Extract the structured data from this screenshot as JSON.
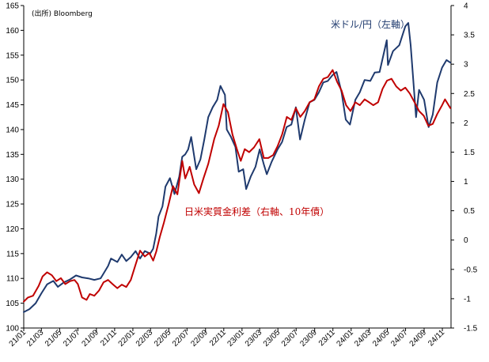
{
  "source_note": "(出所) Bloomberg",
  "chart_data": {
    "type": "line",
    "x_tick_labels": [
      "21/01",
      "21/03",
      "21/05",
      "21/07",
      "21/09",
      "21/11",
      "22/01",
      "22/03",
      "22/05",
      "22/07",
      "22/09",
      "22/11",
      "23/01",
      "23/03",
      "23/05",
      "23/07",
      "23/09",
      "23/11",
      "24/01",
      "24/03",
      "24/05",
      "24/07",
      "24/09",
      "24/11"
    ],
    "x_range": [
      "2021-01-01",
      "2024-11-30"
    ],
    "left_axis": {
      "min": 100,
      "max": 165,
      "ticks": [
        100,
        105,
        110,
        115,
        120,
        125,
        130,
        135,
        140,
        145,
        150,
        155,
        160,
        165
      ]
    },
    "right_axis": {
      "min": -1.5,
      "max": 4,
      "ticks": [
        -1.5,
        -1,
        -0.5,
        0,
        0.5,
        1,
        1.5,
        2,
        2.5,
        3,
        3.5,
        4
      ]
    },
    "grid": false,
    "series": [
      {
        "name": "米ドル/円（左軸）",
        "axis": "left",
        "color": "#1f3a6e",
        "points": [
          [
            "2021-01-01",
            103.2
          ],
          [
            "2021-01-20",
            103.8
          ],
          [
            "2021-02-10",
            105.0
          ],
          [
            "2021-03-01",
            107.0
          ],
          [
            "2021-03-20",
            108.8
          ],
          [
            "2021-04-10",
            109.5
          ],
          [
            "2021-04-25",
            108.3
          ],
          [
            "2021-05-15",
            109.2
          ],
          [
            "2021-06-05",
            109.8
          ],
          [
            "2021-06-25",
            110.6
          ],
          [
            "2021-07-15",
            110.2
          ],
          [
            "2021-08-05",
            110.0
          ],
          [
            "2021-08-25",
            109.7
          ],
          [
            "2021-09-15",
            110.0
          ],
          [
            "2021-09-25",
            111.0
          ],
          [
            "2021-10-10",
            112.5
          ],
          [
            "2021-10-20",
            114.0
          ],
          [
            "2021-11-10",
            113.3
          ],
          [
            "2021-11-25",
            114.8
          ],
          [
            "2021-12-10",
            113.5
          ],
          [
            "2021-12-25",
            114.3
          ],
          [
            "2022-01-10",
            115.5
          ],
          [
            "2022-01-25",
            114.0
          ],
          [
            "2022-02-10",
            115.5
          ],
          [
            "2022-02-28",
            115.0
          ],
          [
            "2022-03-10",
            116.0
          ],
          [
            "2022-03-20",
            119.0
          ],
          [
            "2022-03-28",
            122.5
          ],
          [
            "2022-04-10",
            124.5
          ],
          [
            "2022-04-20",
            128.5
          ],
          [
            "2022-05-05",
            130.2
          ],
          [
            "2022-05-20",
            127.0
          ],
          [
            "2022-06-05",
            130.5
          ],
          [
            "2022-06-15",
            134.5
          ],
          [
            "2022-06-25",
            135.0
          ],
          [
            "2022-07-05",
            136.0
          ],
          [
            "2022-07-15",
            138.5
          ],
          [
            "2022-08-01",
            132.0
          ],
          [
            "2022-08-15",
            134.0
          ],
          [
            "2022-08-28",
            138.0
          ],
          [
            "2022-09-10",
            142.5
          ],
          [
            "2022-09-25",
            144.5
          ],
          [
            "2022-10-10",
            146.0
          ],
          [
            "2022-10-21",
            148.8
          ],
          [
            "2022-11-05",
            147.0
          ],
          [
            "2022-11-11",
            140.0
          ],
          [
            "2022-11-25",
            138.5
          ],
          [
            "2022-12-10",
            136.5
          ],
          [
            "2022-12-21",
            131.5
          ],
          [
            "2023-01-05",
            132.0
          ],
          [
            "2023-01-15",
            128.0
          ],
          [
            "2023-01-30",
            130.5
          ],
          [
            "2023-02-15",
            132.5
          ],
          [
            "2023-03-01",
            136.0
          ],
          [
            "2023-03-15",
            133.0
          ],
          [
            "2023-03-25",
            131.0
          ],
          [
            "2023-04-10",
            133.5
          ],
          [
            "2023-04-30",
            136.0
          ],
          [
            "2023-05-15",
            137.5
          ],
          [
            "2023-05-30",
            140.5
          ],
          [
            "2023-06-15",
            141.0
          ],
          [
            "2023-06-30",
            144.5
          ],
          [
            "2023-07-14",
            138.0
          ],
          [
            "2023-07-30",
            142.0
          ],
          [
            "2023-08-15",
            145.5
          ],
          [
            "2023-08-31",
            146.0
          ],
          [
            "2023-09-15",
            147.5
          ],
          [
            "2023-09-30",
            149.5
          ],
          [
            "2023-10-15",
            149.8
          ],
          [
            "2023-10-31",
            151.0
          ],
          [
            "2023-11-13",
            151.6
          ],
          [
            "2023-11-30",
            147.5
          ],
          [
            "2023-12-14",
            142.0
          ],
          [
            "2023-12-28",
            141.0
          ],
          [
            "2024-01-15",
            146.0
          ],
          [
            "2024-01-30",
            147.5
          ],
          [
            "2024-02-15",
            150.0
          ],
          [
            "2024-03-05",
            149.8
          ],
          [
            "2024-03-20",
            151.5
          ],
          [
            "2024-04-05",
            151.6
          ],
          [
            "2024-04-29",
            158.0
          ],
          [
            "2024-05-03",
            153.0
          ],
          [
            "2024-05-20",
            155.8
          ],
          [
            "2024-06-10",
            157.0
          ],
          [
            "2024-06-30",
            160.8
          ],
          [
            "2024-07-10",
            161.5
          ],
          [
            "2024-07-18",
            157.0
          ],
          [
            "2024-08-05",
            142.5
          ],
          [
            "2024-08-15",
            148.0
          ],
          [
            "2024-09-01",
            146.0
          ],
          [
            "2024-09-16",
            140.5
          ],
          [
            "2024-09-30",
            143.0
          ],
          [
            "2024-10-15",
            149.5
          ],
          [
            "2024-10-31",
            152.5
          ],
          [
            "2024-11-15",
            154.0
          ],
          [
            "2024-11-28",
            153.5
          ]
        ]
      },
      {
        "name": "日米実質金利差（右軸、10年債）",
        "axis": "right",
        "color": "#c00000",
        "points": [
          [
            "2021-01-01",
            -1.05
          ],
          [
            "2021-01-15",
            -0.98
          ],
          [
            "2021-02-01",
            -0.95
          ],
          [
            "2021-02-20",
            -0.78
          ],
          [
            "2021-03-05",
            -0.62
          ],
          [
            "2021-03-20",
            -0.55
          ],
          [
            "2021-04-05",
            -0.6
          ],
          [
            "2021-04-20",
            -0.7
          ],
          [
            "2021-05-05",
            -0.65
          ],
          [
            "2021-05-20",
            -0.75
          ],
          [
            "2021-06-05",
            -0.7
          ],
          [
            "2021-06-20",
            -0.68
          ],
          [
            "2021-07-01",
            -0.75
          ],
          [
            "2021-07-15",
            -0.98
          ],
          [
            "2021-07-30",
            -1.02
          ],
          [
            "2021-08-10",
            -0.92
          ],
          [
            "2021-08-25",
            -0.95
          ],
          [
            "2021-09-10",
            -0.86
          ],
          [
            "2021-09-25",
            -0.72
          ],
          [
            "2021-10-10",
            -0.68
          ],
          [
            "2021-10-25",
            -0.75
          ],
          [
            "2021-11-10",
            -0.82
          ],
          [
            "2021-11-25",
            -0.76
          ],
          [
            "2021-12-10",
            -0.8
          ],
          [
            "2021-12-25",
            -0.68
          ],
          [
            "2022-01-10",
            -0.42
          ],
          [
            "2022-01-25",
            -0.18
          ],
          [
            "2022-02-10",
            -0.28
          ],
          [
            "2022-02-25",
            -0.22
          ],
          [
            "2022-03-10",
            -0.35
          ],
          [
            "2022-03-20",
            -0.2
          ],
          [
            "2022-04-01",
            0.05
          ],
          [
            "2022-04-15",
            0.3
          ],
          [
            "2022-05-01",
            0.62
          ],
          [
            "2022-05-15",
            0.92
          ],
          [
            "2022-05-30",
            0.78
          ],
          [
            "2022-06-15",
            1.35
          ],
          [
            "2022-06-25",
            1.05
          ],
          [
            "2022-07-10",
            1.25
          ],
          [
            "2022-07-25",
            0.95
          ],
          [
            "2022-08-10",
            0.8
          ],
          [
            "2022-08-25",
            1.05
          ],
          [
            "2022-09-10",
            1.3
          ],
          [
            "2022-09-30",
            1.72
          ],
          [
            "2022-10-15",
            1.95
          ],
          [
            "2022-10-31",
            2.32
          ],
          [
            "2022-11-15",
            2.18
          ],
          [
            "2022-11-30",
            1.8
          ],
          [
            "2022-12-15",
            1.55
          ],
          [
            "2022-12-28",
            1.35
          ],
          [
            "2023-01-10",
            1.55
          ],
          [
            "2023-01-25",
            1.5
          ],
          [
            "2023-02-10",
            1.58
          ],
          [
            "2023-02-28",
            1.72
          ],
          [
            "2023-03-15",
            1.4
          ],
          [
            "2023-03-30",
            1.4
          ],
          [
            "2023-04-15",
            1.45
          ],
          [
            "2023-04-30",
            1.6
          ],
          [
            "2023-05-15",
            1.8
          ],
          [
            "2023-05-31",
            2.1
          ],
          [
            "2023-06-15",
            2.05
          ],
          [
            "2023-06-30",
            2.25
          ],
          [
            "2023-07-15",
            2.1
          ],
          [
            "2023-07-30",
            2.2
          ],
          [
            "2023-08-15",
            2.35
          ],
          [
            "2023-08-31",
            2.4
          ],
          [
            "2023-09-15",
            2.62
          ],
          [
            "2023-09-30",
            2.75
          ],
          [
            "2023-10-15",
            2.78
          ],
          [
            "2023-10-31",
            2.9
          ],
          [
            "2023-11-15",
            2.7
          ],
          [
            "2023-11-30",
            2.55
          ],
          [
            "2023-12-15",
            2.3
          ],
          [
            "2023-12-30",
            2.2
          ],
          [
            "2024-01-15",
            2.35
          ],
          [
            "2024-01-30",
            2.3
          ],
          [
            "2024-02-15",
            2.4
          ],
          [
            "2024-03-01",
            2.35
          ],
          [
            "2024-03-15",
            2.3
          ],
          [
            "2024-03-31",
            2.35
          ],
          [
            "2024-04-15",
            2.58
          ],
          [
            "2024-04-30",
            2.72
          ],
          [
            "2024-05-15",
            2.75
          ],
          [
            "2024-05-31",
            2.62
          ],
          [
            "2024-06-15",
            2.55
          ],
          [
            "2024-06-30",
            2.6
          ],
          [
            "2024-07-15",
            2.5
          ],
          [
            "2024-07-31",
            2.35
          ],
          [
            "2024-08-15",
            2.2
          ],
          [
            "2024-08-31",
            2.12
          ],
          [
            "2024-09-15",
            1.95
          ],
          [
            "2024-09-30",
            1.98
          ],
          [
            "2024-10-15",
            2.15
          ],
          [
            "2024-10-31",
            2.3
          ],
          [
            "2024-11-10",
            2.4
          ],
          [
            "2024-11-28",
            2.25
          ]
        ]
      }
    ],
    "annotations": {
      "usd_label": "米ドル/円（左軸）",
      "rate_label": "日米実質金利差（右軸、10年債）"
    }
  }
}
